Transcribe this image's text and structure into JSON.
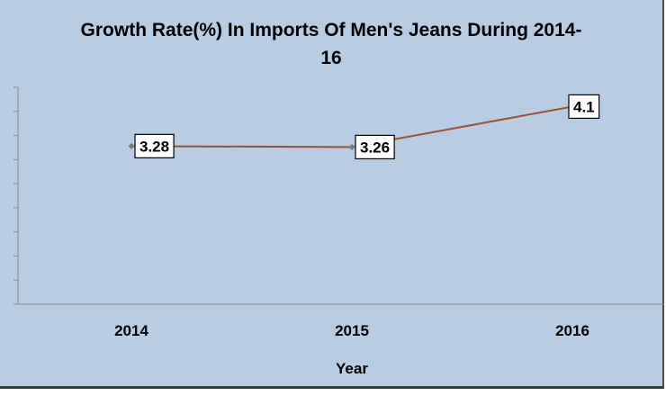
{
  "chart_data": {
    "type": "line",
    "title_lines": [
      "Growth Rate(%) In Imports Of Men's Jeans During 2014-",
      "16"
    ],
    "xlabel": "Year",
    "ylabel": "",
    "categories": [
      "2014",
      "2015",
      "2016"
    ],
    "series": [
      {
        "values": [
          3.28,
          3.26,
          4.1
        ],
        "labels": [
          "3.28",
          "3.26",
          "4.1"
        ],
        "color": "#a0522d"
      }
    ],
    "ylim": [
      0,
      4.5
    ],
    "grid": false,
    "legend": "none"
  },
  "colors": {
    "plot_background": "#b8cce4",
    "axis": "#8c8c8c",
    "line": "#a0522d",
    "marker": "#7a7a7a"
  }
}
